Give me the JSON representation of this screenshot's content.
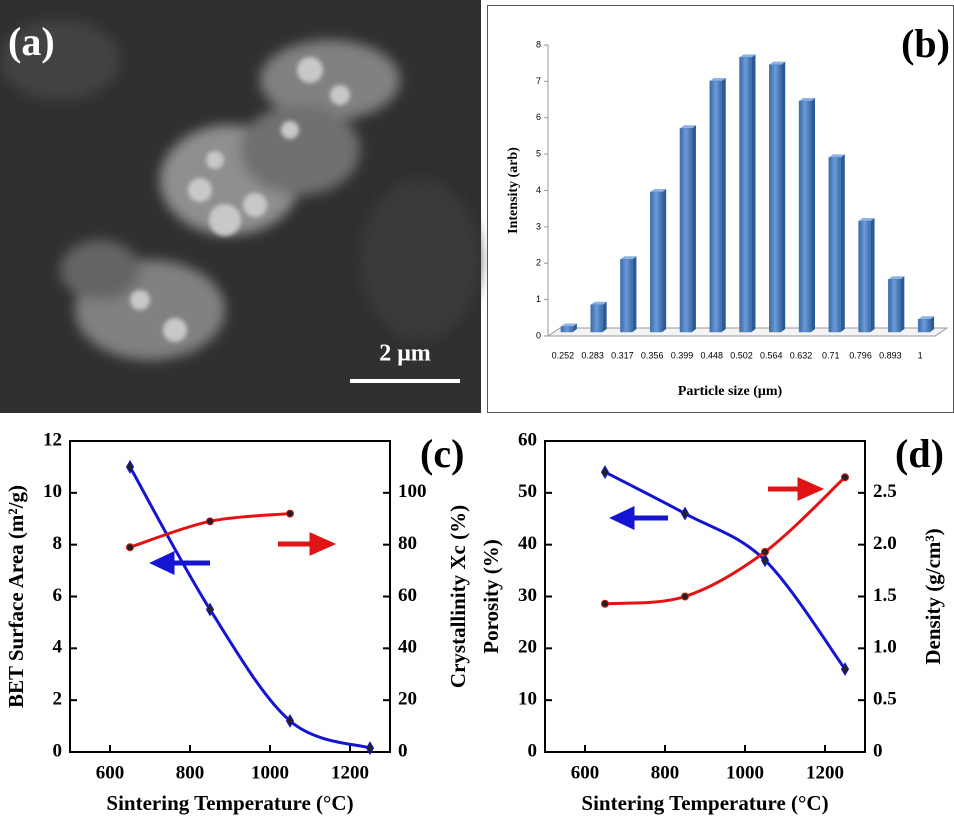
{
  "panels": {
    "a": {
      "label": "(a)",
      "scale_bar": "2 μm"
    }
  },
  "chart_data": [
    {
      "type": "bar",
      "panel_label": "(b)",
      "xlabel": "Particle size (μm)",
      "ylabel": "Intensity (arb)",
      "categories": [
        "0.252",
        "0.283",
        "0.317",
        "0.356",
        "0.399",
        "0.448",
        "0.502",
        "0.564",
        "0.632",
        "0.71",
        "0.796",
        "0.893",
        "1"
      ],
      "values": [
        0.15,
        0.75,
        2.0,
        3.85,
        5.6,
        6.9,
        7.55,
        7.35,
        6.35,
        4.8,
        3.05,
        1.45,
        0.35
      ],
      "color": "#4f81bd",
      "ylim": [
        0,
        8
      ],
      "yticks": [
        0,
        1,
        2,
        3,
        4,
        5,
        6,
        7,
        8
      ]
    },
    {
      "type": "line",
      "panel_label": "(c)",
      "xlabel": "Sintering Temperature (°C)",
      "ylabel": "BET Surface Area (m²/g)",
      "y2label": "Crystallinity Xc (%)",
      "x": [
        650,
        850,
        1050,
        1250
      ],
      "xlim": [
        500,
        1300
      ],
      "xticks": [
        600,
        800,
        1000,
        1200
      ],
      "ylim": [
        0,
        12
      ],
      "yticks": [
        0,
        2,
        4,
        6,
        8,
        10,
        12
      ],
      "y2lim": [
        0,
        120
      ],
      "y2ticks": [
        0,
        20,
        40,
        60,
        80,
        100
      ],
      "series": [
        {
          "color": "#1414d2",
          "values": [
            11,
            5.5,
            1.2,
            0.15
          ]
        },
        {
          "color": "#e01414",
          "axis": "y2",
          "values": [
            79,
            89,
            92,
            null
          ]
        }
      ]
    },
    {
      "type": "line",
      "panel_label": "(d)",
      "xlabel": "Sintering Temperature (°C)",
      "ylabel": "Porosity (%)",
      "y2label": "Density (g/cm³)",
      "x": [
        650,
        850,
        1050,
        1250
      ],
      "xlim": [
        500,
        1300
      ],
      "xticks": [
        600,
        800,
        1000,
        1200
      ],
      "ylim": [
        0,
        60
      ],
      "yticks": [
        0,
        10,
        20,
        30,
        40,
        50,
        60
      ],
      "y2lim": [
        0,
        3
      ],
      "y2ticks": [
        0,
        0.5,
        {
          "value": 1,
          "label": "1.0"
        },
        1.5,
        {
          "value": 2,
          "label": "2.0"
        },
        2.5
      ],
      "series": [
        {
          "color": "#1414d2",
          "values": [
            54,
            46,
            37,
            16
          ]
        },
        {
          "color": "#e01414",
          "axis": "y2",
          "values": [
            1.43,
            1.5,
            1.93,
            2.65
          ]
        }
      ]
    }
  ]
}
